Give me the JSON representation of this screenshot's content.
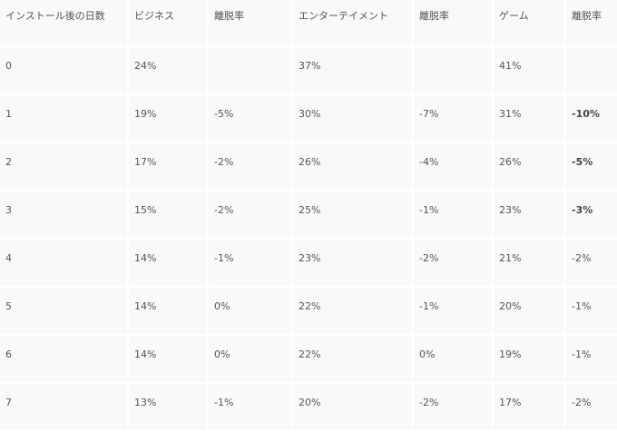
{
  "table": {
    "headers": [
      "インストール後の日数",
      "ビジネス",
      "離脱率",
      "エンターテイメント",
      "離脱率",
      "ゲーム",
      "離脱率"
    ],
    "rows": [
      {
        "day": "0",
        "business": "24%",
        "business_churn": "",
        "entertainment": "37%",
        "entertainment_churn": "",
        "games": "41%",
        "games_churn": "",
        "games_churn_bold": false
      },
      {
        "day": "1",
        "business": "19%",
        "business_churn": "-5%",
        "entertainment": "30%",
        "entertainment_churn": "-7%",
        "games": "31%",
        "games_churn": "-10%",
        "games_churn_bold": true
      },
      {
        "day": "2",
        "business": "17%",
        "business_churn": "-2%",
        "entertainment": "26%",
        "entertainment_churn": "-4%",
        "games": "26%",
        "games_churn": "-5%",
        "games_churn_bold": true
      },
      {
        "day": "3",
        "business": "15%",
        "business_churn": "-2%",
        "entertainment": "25%",
        "entertainment_churn": "-1%",
        "games": "23%",
        "games_churn": "-3%",
        "games_churn_bold": true
      },
      {
        "day": "4",
        "business": "14%",
        "business_churn": "-1%",
        "entertainment": "23%",
        "entertainment_churn": "-2%",
        "games": "21%",
        "games_churn": "-2%",
        "games_churn_bold": false
      },
      {
        "day": "5",
        "business": "14%",
        "business_churn": "0%",
        "entertainment": "22%",
        "entertainment_churn": "-1%",
        "games": "20%",
        "games_churn": "-1%",
        "games_churn_bold": false
      },
      {
        "day": "6",
        "business": "14%",
        "business_churn": "0%",
        "entertainment": "22%",
        "entertainment_churn": "0%",
        "games": "19%",
        "games_churn": "-1%",
        "games_churn_bold": false
      },
      {
        "day": "7",
        "business": "13%",
        "business_churn": "-1%",
        "entertainment": "20%",
        "entertainment_churn": "-2%",
        "games": "17%",
        "games_churn": "-2%",
        "games_churn_bold": false
      }
    ]
  }
}
